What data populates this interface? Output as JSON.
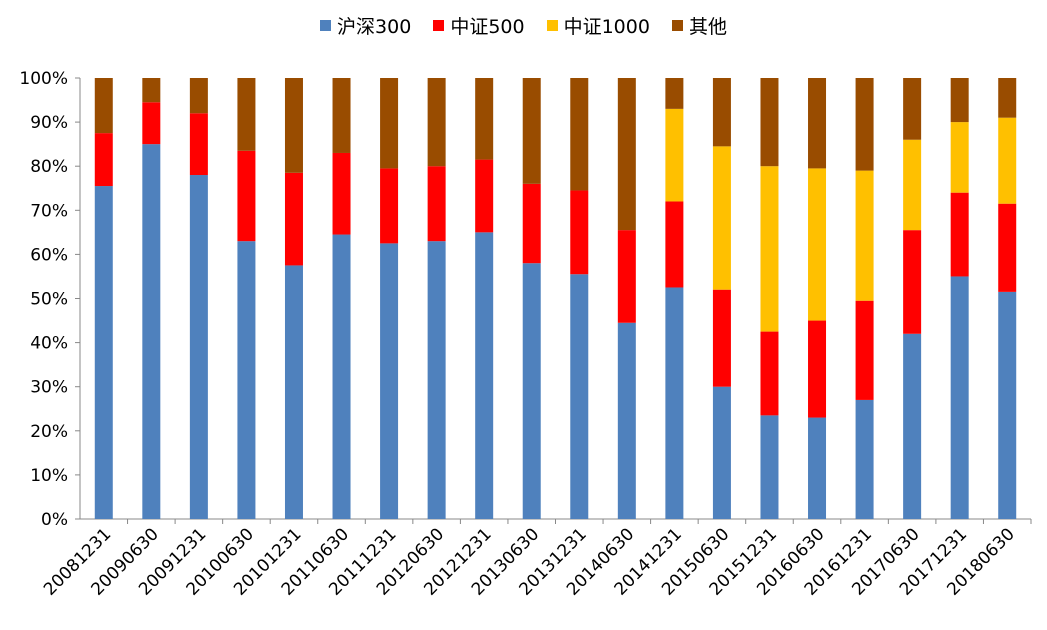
{
  "chart_data": {
    "type": "bar",
    "stacked": true,
    "percent": true,
    "categories": [
      "20081231",
      "20090630",
      "20091231",
      "20100630",
      "20101231",
      "20110630",
      "20111231",
      "20120630",
      "20121231",
      "20130630",
      "20131231",
      "20140630",
      "20141231",
      "20150630",
      "20151231",
      "20160630",
      "20161231",
      "20170630",
      "20171231",
      "20180630"
    ],
    "series": [
      {
        "name": "沪深300",
        "color": "#4F81BD",
        "values": [
          75.5,
          85,
          78,
          63,
          57.5,
          64.5,
          62.5,
          63,
          65,
          58,
          55.5,
          44.5,
          52.5,
          30,
          23.5,
          23,
          27,
          42,
          55,
          51.5
        ]
      },
      {
        "name": "中证500",
        "color": "#FF0000",
        "values": [
          12,
          9.5,
          14,
          20.5,
          21,
          18.5,
          17,
          17,
          16.5,
          18,
          19,
          21,
          19.5,
          22,
          19,
          22,
          22.5,
          23.5,
          19,
          20
        ]
      },
      {
        "name": "中证1000",
        "color": "#FFC000",
        "values": [
          0,
          0,
          0,
          0,
          0,
          0,
          0,
          0,
          0,
          0,
          0,
          0,
          21,
          32.5,
          37.5,
          34.5,
          29.5,
          20.5,
          16,
          19.5
        ]
      },
      {
        "name": "其他",
        "color": "#994C00",
        "values": [
          12.5,
          5.5,
          8,
          16.5,
          21.5,
          17,
          20.5,
          20,
          18.5,
          24,
          25.5,
          34.5,
          7,
          15.5,
          20,
          20.5,
          21,
          14,
          10,
          9
        ]
      }
    ],
    "yticks": [
      "0%",
      "10%",
      "20%",
      "30%",
      "40%",
      "50%",
      "60%",
      "70%",
      "80%",
      "90%",
      "100%"
    ],
    "ylim": [
      0,
      100
    ],
    "xlabel": "",
    "ylabel": "",
    "grid": false,
    "legend_position": "top"
  }
}
